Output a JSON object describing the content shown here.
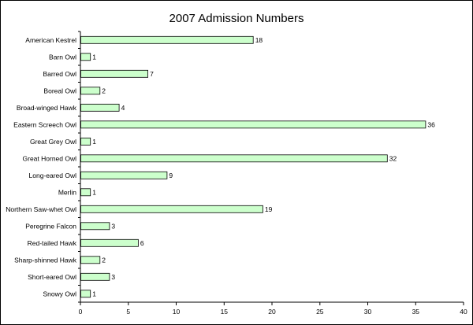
{
  "chart_data": {
    "type": "bar",
    "orientation": "horizontal",
    "title": "2007 Admission Numbers",
    "xlabel": "",
    "ylabel": "",
    "categories": [
      "American Kestrel",
      "Barn Owl",
      "Barred Owl",
      "Boreal Owl",
      "Broad-winged Hawk",
      "Eastern Screech Owl",
      "Great Grey Owl",
      "Great Horned Owl",
      "Long-eared Owl",
      "Merlin",
      "Northern Saw-whet Owl",
      "Peregrine Falcon",
      "Red-tailed Hawk",
      "Sharp-shinned Hawk",
      "Short-eared Owl",
      "Snowy Owl"
    ],
    "values": [
      18,
      1,
      7,
      2,
      4,
      36,
      1,
      32,
      9,
      1,
      19,
      3,
      6,
      2,
      3,
      1
    ],
    "xlim": [
      0,
      40
    ],
    "xticks": [
      0,
      5,
      10,
      15,
      20,
      25,
      30,
      35,
      40
    ],
    "grid": false,
    "legend": "none",
    "colors": {
      "bar_fill": "#ccffcc",
      "bar_stroke": "#000000",
      "axis": "#000000"
    }
  }
}
